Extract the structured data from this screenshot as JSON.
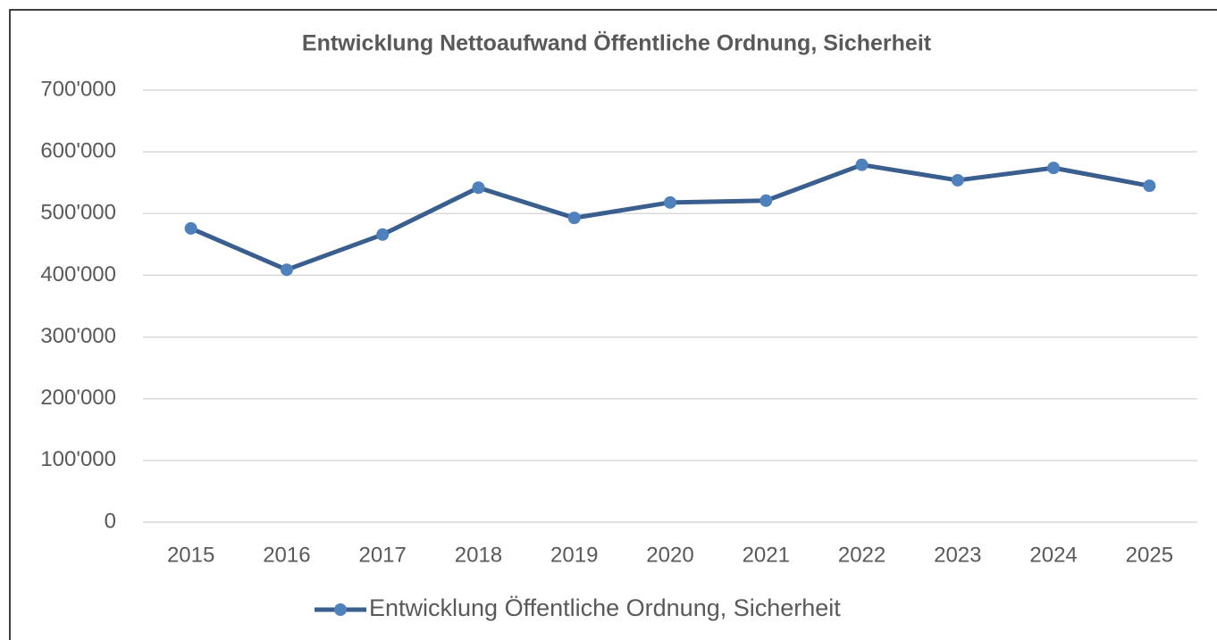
{
  "chart_data": {
    "type": "line",
    "title": "Entwicklung Nettoaufwand Öffentliche Ordnung, Sicherheit",
    "categories": [
      "2015",
      "2016",
      "2017",
      "2018",
      "2019",
      "2020",
      "2021",
      "2022",
      "2023",
      "2024",
      "2025"
    ],
    "series": [
      {
        "name": "Entwicklung Öffentliche Ordnung, Sicherheit",
        "color": "#3a5f8f",
        "marker_color": "#4f81bd",
        "values": [
          476000,
          409000,
          466000,
          542000,
          493000,
          518000,
          521000,
          579000,
          554000,
          574000,
          545000
        ]
      }
    ],
    "ylim": [
      0,
      700000
    ],
    "yticks": [
      0,
      {
        "value": 100000,
        "label": "100'000"
      },
      {
        "value": 200000,
        "label": "200'000"
      },
      {
        "value": 300000,
        "label": "300'000"
      },
      {
        "value": 400000,
        "label": "400'000"
      },
      {
        "value": 500000,
        "label": "500'000"
      },
      {
        "value": 600000,
        "label": "600'000"
      },
      {
        "value": 700000,
        "label": "700'000"
      }
    ],
    "grid": true,
    "legend": "bottom"
  }
}
